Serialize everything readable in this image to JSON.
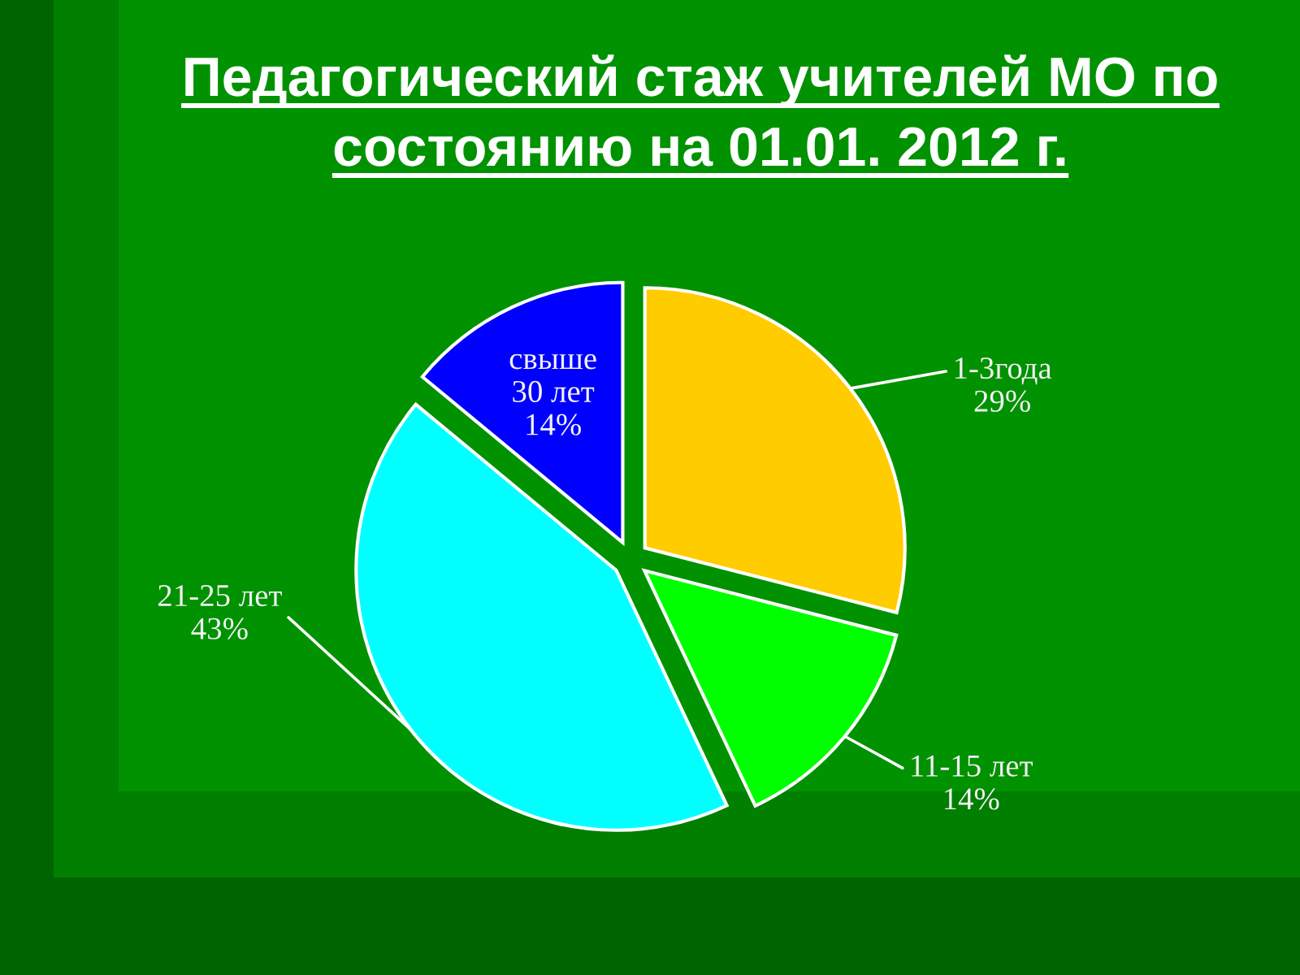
{
  "chart_data": {
    "type": "pie",
    "title": "Педагогический стаж учителей МО по состоянию на 01.01. 2012 г.",
    "categories": [
      "1-3года",
      "11-15 лет",
      "21-25 лет",
      "свыше 30 лет"
    ],
    "values": [
      29,
      14,
      43,
      14
    ],
    "colors": [
      "#ffcc00",
      "#00ff00",
      "#00ffff",
      "#0000ff"
    ],
    "value_labels": [
      "29%",
      "14%",
      "43%",
      "14%"
    ]
  }
}
